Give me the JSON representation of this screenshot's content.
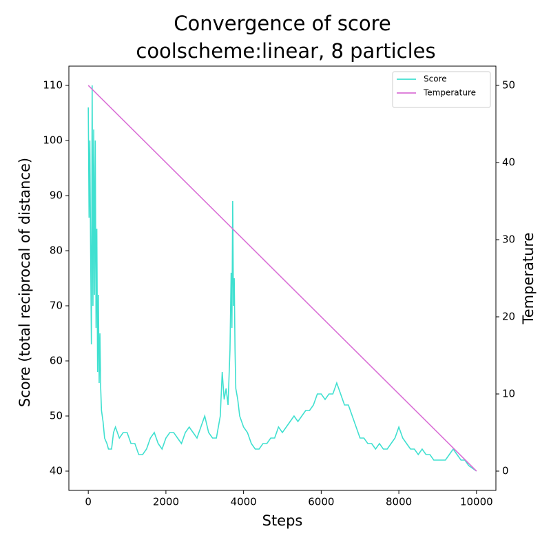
{
  "chart_data": {
    "type": "line",
    "title": [
      "Convergence of score",
      "coolscheme:linear, 8 particles"
    ],
    "x_label": "Steps",
    "y_label": "Score (total reciprocal of distance)",
    "y2_label": "Temperature",
    "xlim": [
      -500,
      10500
    ],
    "xticks": [
      0,
      2000,
      4000,
      6000,
      8000,
      10000
    ],
    "ylim": [
      36.5,
      113.5
    ],
    "yticks": [
      40,
      50,
      60,
      70,
      80,
      90,
      100,
      110
    ],
    "y2lim": [
      -2.5,
      52.5
    ],
    "y2ticks": [
      0,
      10,
      20,
      30,
      40,
      50
    ],
    "legend": "upper right",
    "series": [
      {
        "name": "Score",
        "color": "#40e0d0",
        "x": [
          0,
          20,
          40,
          60,
          80,
          100,
          120,
          140,
          160,
          180,
          200,
          220,
          240,
          260,
          280,
          300,
          320,
          340,
          380,
          420,
          480,
          520,
          600,
          650,
          700,
          800,
          900,
          1000,
          1100,
          1200,
          1300,
          1400,
          1500,
          1600,
          1700,
          1800,
          1900,
          2000,
          2100,
          2200,
          2300,
          2400,
          2500,
          2600,
          2700,
          2800,
          2900,
          3000,
          3100,
          3200,
          3300,
          3400,
          3450,
          3500,
          3550,
          3600,
          3650,
          3680,
          3700,
          3720,
          3740,
          3760,
          3780,
          3800,
          3850,
          3900,
          4000,
          4100,
          4200,
          4300,
          4400,
          4500,
          4600,
          4700,
          4800,
          4900,
          5000,
          5100,
          5200,
          5300,
          5400,
          5500,
          5600,
          5700,
          5800,
          5900,
          6000,
          6100,
          6200,
          6300,
          6400,
          6500,
          6600,
          6700,
          6800,
          6900,
          7000,
          7100,
          7200,
          7300,
          7400,
          7500,
          7600,
          7700,
          7800,
          7900,
          8000,
          8100,
          8200,
          8300,
          8400,
          8500,
          8600,
          8700,
          8800,
          8900,
          9000,
          9100,
          9200,
          9300,
          9400,
          9500,
          9600,
          9700,
          9800,
          9900,
          10000
        ],
        "values": [
          106,
          86,
          100,
          80,
          63,
          110,
          70,
          102,
          72,
          100,
          66,
          84,
          58,
          72,
          56,
          65,
          55,
          51,
          49,
          46,
          45,
          44,
          44,
          47,
          48,
          46,
          47,
          47,
          45,
          45,
          43,
          43,
          44,
          46,
          47,
          45,
          44,
          46,
          47,
          47,
          46,
          45,
          47,
          48,
          47,
          46,
          48,
          50,
          47,
          46,
          46,
          50,
          58,
          53,
          55,
          52,
          62,
          76,
          66,
          89,
          70,
          75,
          62,
          55,
          53,
          50,
          48,
          47,
          45,
          44,
          44,
          45,
          45,
          46,
          46,
          48,
          47,
          48,
          49,
          50,
          49,
          50,
          51,
          51,
          52,
          54,
          54,
          53,
          54,
          54,
          56,
          54,
          52,
          52,
          50,
          48,
          46,
          46,
          45,
          45,
          44,
          45,
          44,
          44,
          45,
          46,
          48,
          46,
          45,
          44,
          44,
          43,
          44,
          43,
          43,
          42,
          42,
          42,
          42,
          43,
          44,
          43,
          42,
          42,
          41,
          40.5,
          40
        ]
      },
      {
        "name": "Temperature",
        "color": "#da70d6",
        "axis": "y2",
        "x": [
          0,
          10000
        ],
        "values": [
          50,
          0
        ]
      }
    ]
  }
}
